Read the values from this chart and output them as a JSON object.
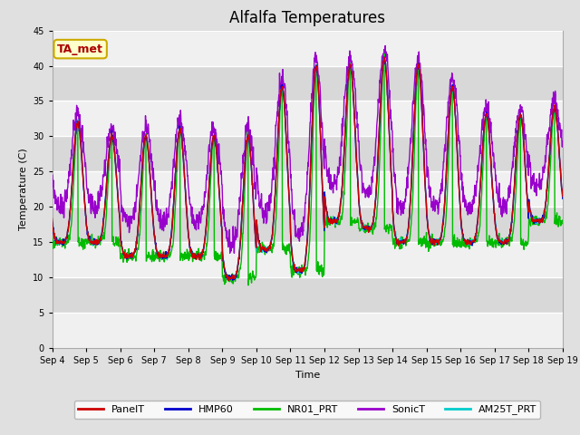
{
  "title": "Alfalfa Temperatures",
  "xlabel": "Time",
  "ylabel": "Temperature (C)",
  "ylim": [
    0,
    45
  ],
  "yticks": [
    0,
    5,
    10,
    15,
    20,
    25,
    30,
    35,
    40,
    45
  ],
  "xtick_labels": [
    "Sep 4",
    "Sep 5",
    "Sep 6",
    "Sep 7",
    "Sep 8",
    "Sep 9",
    "Sep 10",
    "Sep 11",
    "Sep 12",
    "Sep 13",
    "Sep 14",
    "Sep 15",
    "Sep 16",
    "Sep 17",
    "Sep 18",
    "Sep 19"
  ],
  "series_colors": {
    "PanelT": "#cc0000",
    "HMP60": "#0000cc",
    "NR01_PRT": "#00bb00",
    "SonicT": "#9900cc",
    "AM25T_PRT": "#00cccc"
  },
  "annotation_text": "TA_met",
  "annotation_color": "#aa0000",
  "annotation_bg": "#ffffcc",
  "annotation_border": "#ccaa00",
  "title_fontsize": 12,
  "axis_fontsize": 8,
  "tick_fontsize": 7,
  "legend_fontsize": 8,
  "n_days": 15,
  "day_maxes": [
    32,
    30,
    30,
    31,
    30,
    30,
    37,
    40,
    40,
    41,
    40,
    37,
    33,
    33,
    34
  ],
  "day_mins": [
    15,
    15,
    13,
    13,
    13,
    10,
    14,
    11,
    18,
    17,
    15,
    15,
    15,
    15,
    18
  ]
}
